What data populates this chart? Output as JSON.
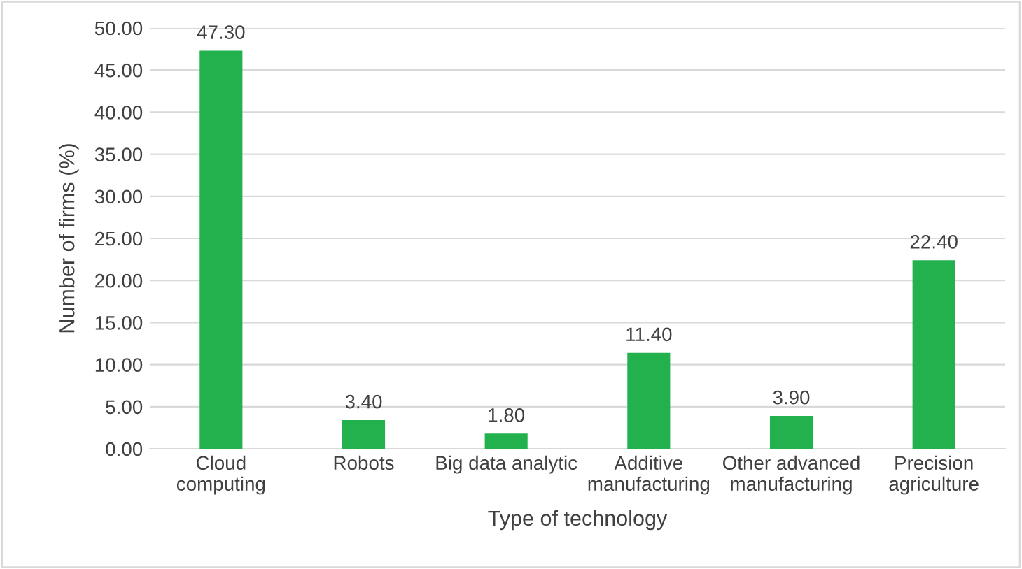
{
  "chart_data": {
    "type": "bar",
    "xlabel": "Type of technology",
    "ylabel": "Number of firms (%)",
    "categories": [
      "Cloud\ncomputing",
      "Robots",
      "Big data analytic",
      "Additive\nmanufacturing",
      "Other advanced\nmanufacturing",
      "Precision\nagriculture"
    ],
    "values": [
      47.3,
      3.4,
      1.8,
      11.4,
      3.9,
      22.4
    ],
    "value_labels": [
      "47.30",
      "3.40",
      "1.80",
      "11.40",
      "3.90",
      "22.40"
    ],
    "color": "#22b14c",
    "ylim": [
      0,
      50
    ],
    "yticks": [
      {
        "value": 0,
        "label": "0.00"
      },
      {
        "value": 5,
        "label": "5.00"
      },
      {
        "value": 10,
        "label": "10.00"
      },
      {
        "value": 15,
        "label": "15.00"
      },
      {
        "value": 20,
        "label": "20.00"
      },
      {
        "value": 25,
        "label": "25.00"
      },
      {
        "value": 30,
        "label": "30.00"
      },
      {
        "value": 35,
        "label": "35.00"
      },
      {
        "value": 40,
        "label": "40.00"
      },
      {
        "value": 45,
        "label": "45.00"
      },
      {
        "value": 50,
        "label": "50.00"
      }
    ],
    "grid": "y",
    "legend": false
  }
}
